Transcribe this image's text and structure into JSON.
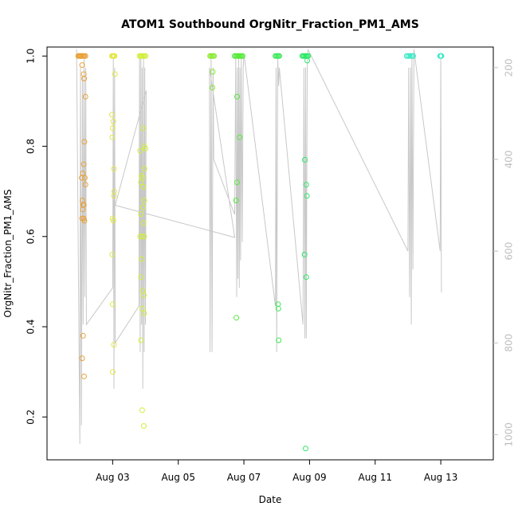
{
  "chart_data": {
    "type": "scatter",
    "title": "ATOM1 Southbound OrgNitr_Fraction_PM1_AMS",
    "xlabel": "Date",
    "ylabel": "OrgNitr_Fraction_PM1_AMS",
    "xlim": [
      -1.0,
      12.6
    ],
    "ylim": [
      0.105,
      1.02
    ],
    "y2lim": [
      155,
      1055
    ],
    "y2_reversed": true,
    "x_ticks": [
      {
        "x": 1,
        "label": "Aug 03"
      },
      {
        "x": 3,
        "label": "Aug 05"
      },
      {
        "x": 5,
        "label": "Aug 07"
      },
      {
        "x": 7,
        "label": "Aug 09"
      },
      {
        "x": 9,
        "label": "Aug 11"
      },
      {
        "x": 11,
        "label": "Aug 13"
      }
    ],
    "y_ticks": [
      {
        "v": 0.2,
        "label": "0.2"
      },
      {
        "v": 0.4,
        "label": "0.4"
      },
      {
        "v": 0.6,
        "label": "0.6"
      },
      {
        "v": 0.8,
        "label": "0.8"
      },
      {
        "v": 1.0,
        "label": "1.0"
      }
    ],
    "y2_ticks": [
      {
        "v": 200,
        "label": "200"
      },
      {
        "v": 400,
        "label": "400"
      },
      {
        "v": 600,
        "label": "600"
      },
      {
        "v": 800,
        "label": "800"
      },
      {
        "v": 1000,
        "label": "1000"
      }
    ],
    "grid": false,
    "legend": "none",
    "series": [
      {
        "color": "#e8a23a",
        "points": [
          [
            -0.05,
            1.0
          ],
          [
            -0.02,
            1.0
          ],
          [
            0.0,
            1.0
          ],
          [
            0.02,
            1.0
          ],
          [
            0.05,
            1.0
          ],
          [
            0.08,
            1.0
          ],
          [
            0.11,
            1.0
          ],
          [
            0.14,
            1.0
          ],
          [
            0.17,
            1.0
          ],
          [
            0.05,
            1.0
          ],
          [
            0.07,
            0.98
          ],
          [
            0.12,
            0.96
          ],
          [
            0.13,
            0.95
          ],
          [
            0.17,
            0.91
          ],
          [
            0.14,
            0.81
          ],
          [
            0.12,
            0.76
          ],
          [
            0.09,
            0.74
          ],
          [
            0.06,
            0.73
          ],
          [
            0.15,
            0.73
          ],
          [
            0.17,
            0.715
          ],
          [
            0.08,
            0.68
          ],
          [
            0.1,
            0.67
          ],
          [
            0.12,
            0.67
          ],
          [
            0.09,
            0.66
          ],
          [
            0.07,
            0.64
          ],
          [
            0.12,
            0.64
          ],
          [
            0.14,
            0.635
          ],
          [
            0.1,
            0.38
          ],
          [
            0.07,
            0.33
          ],
          [
            0.13,
            0.29
          ]
        ]
      },
      {
        "color": "#e1e84a",
        "points": [
          [
            0.98,
            1.0
          ],
          [
            1.0,
            1.0
          ],
          [
            1.02,
            1.0
          ],
          [
            1.04,
            1.0
          ],
          [
            1.06,
            1.0
          ],
          [
            1.07,
            0.96
          ],
          [
            0.98,
            0.87
          ],
          [
            1.02,
            0.855
          ],
          [
            1.0,
            0.84
          ],
          [
            0.99,
            0.82
          ],
          [
            1.04,
            0.75
          ],
          [
            1.05,
            0.7
          ],
          [
            1.04,
            0.69
          ],
          [
            1.0,
            0.64
          ],
          [
            1.02,
            0.635
          ],
          [
            0.99,
            0.56
          ],
          [
            1.0,
            0.45
          ],
          [
            1.04,
            0.36
          ],
          [
            1.0,
            0.3
          ]
        ]
      },
      {
        "color": "#cff03a",
        "points": [
          [
            1.82,
            1.0
          ],
          [
            1.85,
            1.0
          ],
          [
            1.88,
            1.0
          ],
          [
            1.91,
            1.0
          ],
          [
            1.94,
            1.0
          ],
          [
            1.97,
            1.0
          ],
          [
            2.0,
            1.0
          ],
          [
            1.93,
            0.84
          ],
          [
            1.96,
            0.8
          ],
          [
            2.0,
            0.795
          ],
          [
            1.84,
            0.79
          ],
          [
            1.97,
            0.75
          ],
          [
            1.88,
            0.735
          ],
          [
            1.9,
            0.73
          ],
          [
            1.86,
            0.72
          ],
          [
            1.94,
            0.71
          ],
          [
            1.96,
            0.68
          ],
          [
            1.92,
            0.665
          ],
          [
            1.86,
            0.65
          ],
          [
            1.94,
            0.63
          ],
          [
            1.84,
            0.6
          ],
          [
            1.9,
            0.6
          ],
          [
            1.96,
            0.6
          ],
          [
            1.88,
            0.55
          ],
          [
            1.86,
            0.51
          ],
          [
            1.92,
            0.48
          ],
          [
            1.95,
            0.47
          ],
          [
            1.9,
            0.44
          ],
          [
            1.96,
            0.43
          ],
          [
            1.86,
            0.37
          ],
          [
            1.9,
            0.215
          ],
          [
            1.95,
            0.18
          ]
        ]
      },
      {
        "color": "#88ea2e",
        "points": [
          [
            3.97,
            1.0
          ],
          [
            4.0,
            1.0
          ],
          [
            4.03,
            1.0
          ],
          [
            4.06,
            1.0
          ],
          [
            4.09,
            1.0
          ],
          [
            4.05,
            0.965
          ],
          [
            4.04,
            0.93
          ]
        ]
      },
      {
        "color": "#56ea3a",
        "points": [
          [
            4.72,
            1.0
          ],
          [
            4.75,
            1.0
          ],
          [
            4.78,
            1.0
          ],
          [
            4.81,
            1.0
          ],
          [
            4.84,
            1.0
          ],
          [
            4.87,
            1.0
          ],
          [
            4.9,
            1.0
          ],
          [
            4.93,
            1.0
          ],
          [
            4.96,
            1.0
          ],
          [
            4.79,
            0.91
          ],
          [
            4.87,
            0.82
          ],
          [
            4.79,
            0.72
          ],
          [
            4.76,
            0.68
          ],
          [
            4.77,
            0.42
          ]
        ]
      },
      {
        "color": "#3de85a",
        "points": [
          [
            5.96,
            1.0
          ],
          [
            5.99,
            1.0
          ],
          [
            6.02,
            1.0
          ],
          [
            6.05,
            1.0
          ],
          [
            6.08,
            1.0
          ],
          [
            6.04,
            0.45
          ],
          [
            6.05,
            0.44
          ],
          [
            6.06,
            0.37
          ]
        ]
      },
      {
        "color": "#2ee86a",
        "points": [
          [
            6.78,
            1.0
          ],
          [
            6.81,
            1.0
          ],
          [
            6.84,
            1.0
          ],
          [
            6.87,
            1.0
          ],
          [
            6.9,
            1.0
          ],
          [
            6.93,
            1.0
          ],
          [
            6.96,
            1.0
          ],
          [
            6.93,
            0.99
          ],
          [
            6.86,
            0.77
          ],
          [
            6.9,
            0.715
          ],
          [
            6.92,
            0.69
          ],
          [
            6.85,
            0.56
          ],
          [
            6.9,
            0.51
          ],
          [
            6.88,
            0.13
          ]
        ]
      },
      {
        "color": "#3ae8c4",
        "points": [
          [
            9.96,
            1.0
          ],
          [
            10.0,
            1.0
          ],
          [
            10.04,
            1.0
          ],
          [
            10.08,
            1.0
          ],
          [
            10.12,
            1.0
          ],
          [
            10.16,
            1.0
          ],
          [
            10.98,
            1.0
          ],
          [
            11.0,
            1.0
          ],
          [
            11.02,
            1.0
          ]
        ]
      }
    ],
    "altitude_line": {
      "color": "#c8c8c8",
      "note": "secondary axis trace, drawn on reversed right axis",
      "points": [
        [
          -0.1,
          160
        ],
        [
          0.0,
          1020
        ],
        [
          0.02,
          200
        ],
        [
          0.05,
          980
        ],
        [
          0.08,
          220
        ],
        [
          0.1,
          760
        ],
        [
          0.13,
          180
        ],
        [
          0.15,
          700
        ],
        [
          0.18,
          200
        ],
        [
          0.2,
          760
        ],
        [
          1.0,
          680
        ],
        [
          1.02,
          180
        ],
        [
          1.04,
          900
        ],
        [
          1.06,
          200
        ],
        [
          1.08,
          800
        ],
        [
          1.8,
          720
        ],
        [
          1.82,
          170
        ],
        [
          1.84,
          820
        ],
        [
          1.86,
          180
        ],
        [
          1.88,
          760
        ],
        [
          1.9,
          200
        ],
        [
          1.92,
          900
        ],
        [
          1.94,
          170
        ],
        [
          1.96,
          820
        ],
        [
          1.98,
          200
        ],
        [
          2.0,
          760
        ],
        [
          2.02,
          250
        ],
        [
          1.08,
          500
        ],
        [
          4.72,
          570
        ],
        [
          3.95,
          200
        ],
        [
          3.97,
          820
        ],
        [
          4.0,
          170
        ],
        [
          4.03,
          820
        ],
        [
          4.06,
          200
        ],
        [
          4.08,
          400
        ],
        [
          4.72,
          520
        ],
        [
          4.75,
          180
        ],
        [
          4.78,
          700
        ],
        [
          4.8,
          200
        ],
        [
          4.82,
          660
        ],
        [
          4.84,
          180
        ],
        [
          4.86,
          680
        ],
        [
          4.88,
          200
        ],
        [
          4.9,
          620
        ],
        [
          4.92,
          180
        ],
        [
          4.95,
          580
        ],
        [
          4.98,
          200
        ],
        [
          5.0,
          170
        ],
        [
          5.96,
          720
        ],
        [
          5.98,
          200
        ],
        [
          6.0,
          820
        ],
        [
          6.03,
          180
        ],
        [
          6.06,
          240
        ],
        [
          6.08,
          200
        ],
        [
          6.8,
          760
        ],
        [
          6.83,
          200
        ],
        [
          6.86,
          790
        ],
        [
          6.88,
          200
        ],
        [
          6.9,
          790
        ],
        [
          6.93,
          200
        ],
        [
          6.95,
          160
        ],
        [
          10.0,
          600
        ],
        [
          10.02,
          200
        ],
        [
          10.05,
          700
        ],
        [
          10.08,
          200
        ],
        [
          10.1,
          760
        ],
        [
          10.12,
          180
        ],
        [
          10.15,
          640
        ],
        [
          10.18,
          160
        ],
        [
          10.98,
          600
        ],
        [
          11.0,
          180
        ],
        [
          11.02,
          690
        ]
      ]
    }
  }
}
